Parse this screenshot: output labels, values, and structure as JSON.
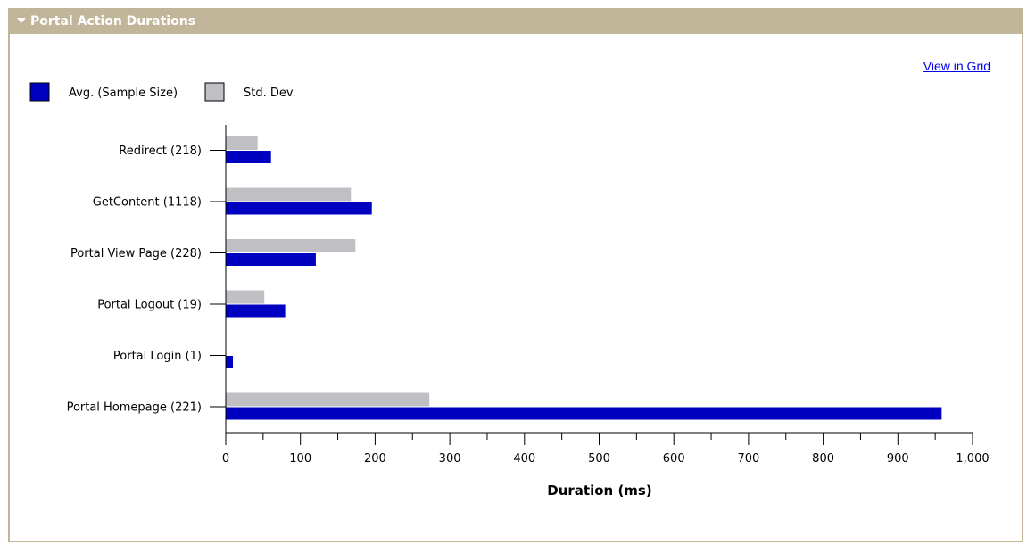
{
  "panel": {
    "title": "Portal Action Durations",
    "link_label": "View in Grid"
  },
  "colors": {
    "avg": "#0000c0",
    "std": "#c0c0c4",
    "title_bar": "#c1b69a",
    "link": "#0000ee"
  },
  "chart_data": {
    "type": "bar",
    "orientation": "horizontal",
    "categories": [
      "Redirect  (218)",
      "GetContent  (1118)",
      "Portal View Page (228)",
      "Portal Logout (19)",
      "Portal Login (1)",
      "Portal Homepage (221)"
    ],
    "series": [
      {
        "name": "Std. Dev.",
        "values": [
          42,
          167,
          173,
          51,
          0,
          272
        ]
      },
      {
        "name": "Avg. (Sample Size)",
        "values": [
          60,
          195,
          120,
          79,
          9,
          958
        ]
      }
    ],
    "xlabel": "Duration (ms)",
    "xlim": [
      0,
      1000
    ],
    "xticks": [
      "0",
      "100",
      "200",
      "300",
      "400",
      "500",
      "600",
      "700",
      "800",
      "900",
      "1,000"
    ],
    "legend_position": "top-left",
    "grid": false
  }
}
